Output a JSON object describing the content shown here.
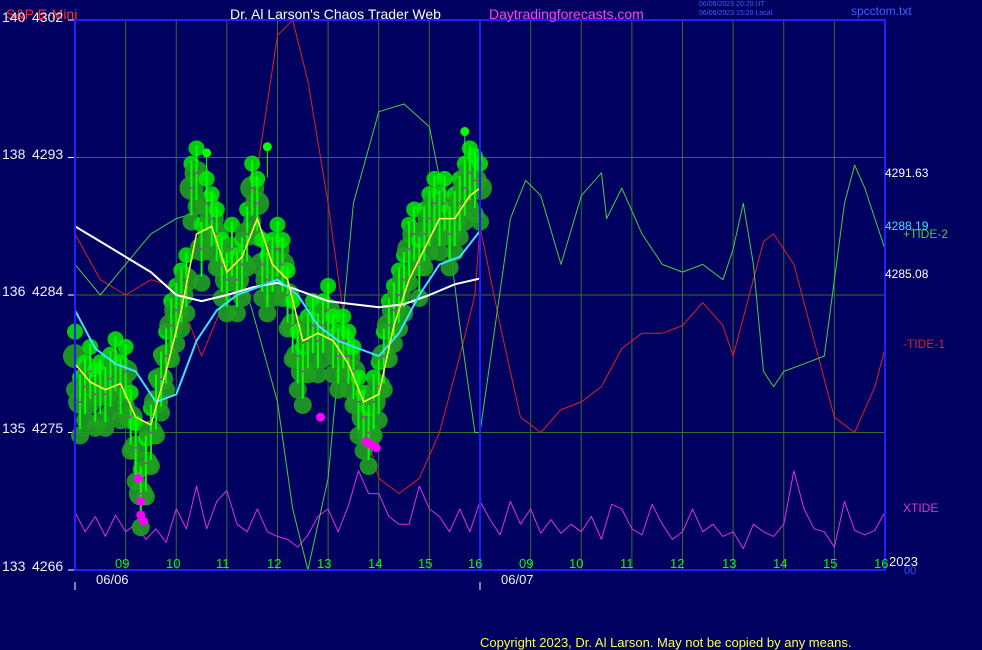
{
  "header": {
    "symbol": "S&P E-Mini",
    "title": "Dr. Al Larson's Chaos Trader Web",
    "site": "Daytradingforecasts.com",
    "timestamp_line1": "06/06/2023 20:20 UT",
    "timestamp_line2": "06/06/2023 15:20 Local",
    "file": "spcctom.txt"
  },
  "footer": {
    "copyright": "Copyright 2023, Dr. Al Larson. May not be copied by any means."
  },
  "colors": {
    "background": "#000060",
    "frame": "#2020ff",
    "grid": "#307030",
    "price_bars": "#00ff00",
    "green_circles": "#20a020",
    "bright_circles": "#00ee00",
    "magenta_marks": "#ff00ff",
    "yellow_avg": "#ffff40",
    "cyan_avg": "#40e0ff",
    "white_avg": "#ffffff",
    "tide2": "#40d040",
    "tide1": "#e02020",
    "xtide": "#e030e0",
    "hdr_symbol": "#ff3030",
    "hdr_title": "#ffffff",
    "hdr_site": "#ff40ff",
    "hdr_time": "#4060ff",
    "hdr_file": "#4060ff"
  },
  "chart_data": {
    "type": "line",
    "title": "S&P E-Mini",
    "y_axis": {
      "range": [
        4266,
        4302
      ],
      "ticks": [
        {
          "left": "140",
          "right": "4302",
          "value": 4302
        },
        {
          "left": "138",
          "right": "4293",
          "value": 4293
        },
        {
          "left": "136",
          "right": "4284",
          "value": 4284
        },
        {
          "left": "135",
          "right": "4275",
          "value": 4275
        },
        {
          "left": "133",
          "right": "4266",
          "value": 4266
        }
      ]
    },
    "x_axis": {
      "range": [
        8.0,
        24.0
      ],
      "hour_ticks": [
        {
          "label": "09",
          "x": 9
        },
        {
          "label": "10",
          "x": 10
        },
        {
          "label": "11",
          "x": 11
        },
        {
          "label": "12",
          "x": 12
        },
        {
          "label": "13",
          "x": 13
        },
        {
          "label": "14",
          "x": 14
        },
        {
          "label": "15",
          "x": 15
        },
        {
          "label": "16",
          "x": 16
        },
        {
          "label": "09",
          "x": 17
        },
        {
          "label": "10",
          "x": 18
        },
        {
          "label": "11",
          "x": 19
        },
        {
          "label": "12",
          "x": 20
        },
        {
          "label": "13",
          "x": 21
        },
        {
          "label": "14",
          "x": 22
        },
        {
          "label": "15",
          "x": 23
        },
        {
          "label": "16",
          "x": 24
        }
      ],
      "date_ticks": [
        {
          "label": "06/06",
          "x": 8.0
        },
        {
          "label": "06/07",
          "x": 16.0
        }
      ],
      "year_label": "2023",
      "overlap_label": "00",
      "session_divider_x": 16.0
    },
    "right_labels": [
      {
        "text": "4291.63",
        "value": 4291.63,
        "color": "#ffffff"
      },
      {
        "text": "4288.19",
        "value": 4288.19,
        "color": "#40e0ff"
      },
      {
        "text": "+TIDE-2",
        "value": 4287.7,
        "color": "#40d040"
      },
      {
        "text": "4285.08",
        "value": 4285.08,
        "color": "#ffffff"
      },
      {
        "text": "-TIDE-1",
        "value": 4280.6,
        "color": "#e02020"
      },
      {
        "text": "XTIDE",
        "value": 4270.1,
        "color": "#e030e0"
      }
    ],
    "series": [
      {
        "key": "price",
        "x": [
          8.0,
          8.1,
          8.2,
          8.3,
          8.4,
          8.5,
          8.6,
          8.7,
          8.8,
          8.9,
          9.0,
          9.1,
          9.2,
          9.3,
          9.4,
          9.5,
          9.6,
          9.7,
          9.8,
          9.9,
          10.0,
          10.1,
          10.2,
          10.3,
          10.4,
          10.5,
          10.6,
          10.7,
          10.8,
          10.9,
          11.0,
          11.1,
          11.2,
          11.3,
          11.4,
          11.5,
          11.6,
          11.7,
          11.8,
          11.9,
          12.0,
          12.1,
          12.2,
          12.3,
          12.4,
          12.5,
          12.6,
          12.7,
          12.8,
          12.9,
          13.0,
          13.1,
          13.2,
          13.3,
          13.4,
          13.5,
          13.6,
          13.7,
          13.8,
          13.9,
          14.0,
          14.1,
          14.2,
          14.3,
          14.4,
          14.5,
          14.6,
          14.7,
          14.8,
          14.9,
          15.0,
          15.1,
          15.2,
          15.3,
          15.4,
          15.5,
          15.6,
          15.7,
          15.8,
          15.9,
          16.0
        ],
        "values": [
          4280.0,
          4277.0,
          4278.0,
          4279.0,
          4277.5,
          4278.0,
          4277.5,
          4278.5,
          4279.5,
          4278.0,
          4279.0,
          4276.0,
          4274.0,
          4271.0,
          4273.0,
          4275.0,
          4277.0,
          4278.5,
          4280.0,
          4282.0,
          4283.0,
          4284.0,
          4285.0,
          4291.0,
          4292.0,
          4287.0,
          4290.0,
          4289.0,
          4288.0,
          4286.0,
          4285.0,
          4287.0,
          4285.0,
          4286.0,
          4288.0,
          4291.0,
          4290.0,
          4286.0,
          4285.0,
          4286.0,
          4287.0,
          4286.0,
          4284.0,
          4282.0,
          4280.0,
          4279.0,
          4281.0,
          4282.0,
          4281.0,
          4282.0,
          4283.0,
          4281.0,
          4280.0,
          4281.0,
          4280.0,
          4279.0,
          4277.0,
          4276.0,
          4275.0,
          4277.0,
          4278.0,
          4280.0,
          4282.0,
          4283.0,
          4284.0,
          4285.0,
          4287.0,
          4288.0,
          4286.0,
          4288.0,
          4289.0,
          4290.0,
          4289.0,
          4290.0,
          4288.0,
          4289.0,
          4290.0,
          4291.0,
          4292.0,
          4291.5,
          4291.0
        ]
      },
      {
        "key": "yellow_avg",
        "x": [
          8.0,
          8.3,
          8.6,
          8.9,
          9.2,
          9.5,
          9.8,
          10.1,
          10.4,
          10.7,
          11.0,
          11.3,
          11.6,
          11.9,
          12.2,
          12.5,
          12.8,
          13.1,
          13.4,
          13.7,
          14.0,
          14.3,
          14.6,
          14.9,
          15.2,
          15.5,
          15.8,
          16.0
        ],
        "values": [
          4279.5,
          4278.3,
          4277.8,
          4278.2,
          4276.0,
          4275.5,
          4279.0,
          4283.0,
          4288.0,
          4288.5,
          4285.5,
          4286.5,
          4289.0,
          4286.0,
          4285.0,
          4281.0,
          4281.5,
          4281.0,
          4279.5,
          4277.0,
          4277.5,
          4282.0,
          4285.0,
          4287.0,
          4289.0,
          4289.0,
          4290.5,
          4291.0
        ]
      },
      {
        "key": "cyan_avg",
        "x": [
          8.0,
          8.4,
          8.8,
          9.2,
          9.6,
          10.0,
          10.4,
          10.8,
          11.2,
          11.6,
          12.0,
          12.4,
          12.8,
          13.2,
          13.6,
          14.0,
          14.4,
          14.8,
          15.2,
          15.6,
          16.0
        ],
        "values": [
          4283.0,
          4280.5,
          4279.5,
          4279.0,
          4277.0,
          4277.5,
          4281.0,
          4283.0,
          4284.0,
          4284.5,
          4285.0,
          4284.0,
          4282.0,
          4281.0,
          4280.5,
          4280.0,
          4281.5,
          4284.0,
          4286.0,
          4286.5,
          4288.19
        ]
      },
      {
        "key": "white_avg",
        "x": [
          8.0,
          8.5,
          9.0,
          9.5,
          10.0,
          10.5,
          11.0,
          11.5,
          12.0,
          12.5,
          13.0,
          13.5,
          14.0,
          14.5,
          15.0,
          15.5,
          16.0
        ],
        "values": [
          4288.5,
          4287.5,
          4286.5,
          4285.5,
          4284.0,
          4283.6,
          4284.0,
          4284.5,
          4284.8,
          4284.2,
          4283.6,
          4283.4,
          4283.2,
          4283.4,
          4284.0,
          4284.7,
          4285.08
        ]
      },
      {
        "key": "tide2",
        "x": [
          8.0,
          8.5,
          9.0,
          9.5,
          10.0,
          10.5,
          11.0,
          11.5,
          12.0,
          12.3,
          12.6,
          13.0,
          13.5,
          14.0,
          14.5,
          15.0,
          15.3,
          15.6,
          15.9,
          16.0,
          16.3,
          16.6,
          16.9,
          17.2,
          17.6,
          18.0,
          18.4,
          18.5,
          18.8,
          19.2,
          19.6,
          20.0,
          20.4,
          20.8,
          21.0,
          21.2,
          21.4,
          21.6,
          21.8,
          22.0,
          22.4,
          22.8,
          23.0,
          23.2,
          23.4,
          23.6,
          24.0
        ],
        "values": [
          4286.0,
          4284.0,
          4286.0,
          4288.0,
          4289.0,
          4289.5,
          4288.0,
          4283.0,
          4277.0,
          4270.0,
          4266.0,
          4272.0,
          4290.0,
          4296.0,
          4296.5,
          4295.0,
          4290.0,
          4282.0,
          4275.0,
          4275.0,
          4282.0,
          4289.0,
          4291.5,
          4290.5,
          4286.0,
          4290.5,
          4292.0,
          4289.0,
          4291.0,
          4288.0,
          4286.0,
          4285.5,
          4286.0,
          4285.0,
          4287.0,
          4290.0,
          4286.0,
          4279.0,
          4278.0,
          4279.0,
          4279.5,
          4280.0,
          4285.0,
          4290.0,
          4292.5,
          4291.0,
          4287.0
        ]
      },
      {
        "key": "tide1",
        "x": [
          8.0,
          8.5,
          9.0,
          9.5,
          10.0,
          10.5,
          11.0,
          11.5,
          12.0,
          12.3,
          12.6,
          13.0,
          13.5,
          14.0,
          14.4,
          14.8,
          15.2,
          15.6,
          15.9,
          16.0,
          16.4,
          16.8,
          17.2,
          17.6,
          18.0,
          18.4,
          18.8,
          19.2,
          19.6,
          20.0,
          20.4,
          20.8,
          21.0,
          21.4,
          21.6,
          21.8,
          22.2,
          22.6,
          23.0,
          23.4,
          23.8,
          24.0
        ],
        "values": [
          4288.0,
          4285.0,
          4284.0,
          4285.0,
          4284.5,
          4280.0,
          4284.0,
          4290.0,
          4301.0,
          4302.0,
          4298.0,
          4290.0,
          4278.0,
          4272.0,
          4271.0,
          4272.0,
          4275.0,
          4280.0,
          4284.0,
          4288.5,
          4282.0,
          4276.0,
          4275.0,
          4276.5,
          4277.0,
          4278.0,
          4280.5,
          4281.5,
          4281.5,
          4282.0,
          4283.5,
          4282.0,
          4280.0,
          4285.0,
          4287.5,
          4288.0,
          4286.0,
          4281.0,
          4276.0,
          4275.0,
          4278.0,
          4280.5
        ]
      },
      {
        "key": "xtide",
        "x": [
          8.0,
          8.2,
          8.4,
          8.6,
          8.8,
          9.0,
          9.2,
          9.4,
          9.6,
          9.8,
          10.0,
          10.2,
          10.4,
          10.6,
          10.8,
          11.0,
          11.2,
          11.4,
          11.6,
          11.8,
          12.0,
          12.2,
          12.4,
          12.6,
          12.8,
          13.0,
          13.2,
          13.4,
          13.6,
          13.8,
          14.0,
          14.2,
          14.4,
          14.6,
          14.8,
          15.0,
          15.2,
          15.4,
          15.6,
          15.8,
          16.0,
          16.2,
          16.4,
          16.6,
          16.8,
          17.0,
          17.2,
          17.4,
          17.6,
          17.8,
          18.0,
          18.2,
          18.4,
          18.6,
          18.8,
          19.0,
          19.2,
          19.4,
          19.6,
          19.8,
          20.0,
          20.2,
          20.4,
          20.6,
          20.8,
          21.0,
          21.2,
          21.4,
          21.6,
          21.8,
          22.0,
          22.2,
          22.4,
          22.6,
          22.8,
          23.0,
          23.2,
          23.4,
          23.6,
          23.8,
          24.0
        ],
        "values": [
          4269.8,
          4268.5,
          4269.5,
          4268.2,
          4269.6,
          4268.5,
          4269.0,
          4268.0,
          4268.7,
          4267.8,
          4270.0,
          4268.7,
          4271.5,
          4268.7,
          4270.5,
          4271.2,
          4269.0,
          4268.5,
          4270.0,
          4268.5,
          4268.2,
          4268.0,
          4267.5,
          4268.3,
          4269.5,
          4270.0,
          4268.5,
          4270.2,
          4272.5,
          4271.0,
          4271.0,
          4269.5,
          4269.0,
          4269.0,
          4271.5,
          4270.0,
          4269.5,
          4268.5,
          4270.0,
          4268.5,
          4270.5,
          4269.3,
          4268.3,
          4270.5,
          4269.0,
          4270.0,
          4268.4,
          4269.3,
          4268.4,
          4269.0,
          4268.5,
          4269.5,
          4268.0,
          4270.3,
          4270.0,
          4268.7,
          4268.3,
          4270.3,
          4269.0,
          4268.0,
          4268.5,
          4270.0,
          4268.5,
          4269.0,
          4268.2,
          4268.5,
          4267.4,
          4269.0,
          4268.5,
          4268.2,
          4269.0,
          4272.5,
          4270.0,
          4268.7,
          4268.5,
          4267.5,
          4270.5,
          4268.6,
          4268.3,
          4268.6,
          4269.8
        ]
      }
    ],
    "highlights": {
      "big_circles_x": [
        8.0,
        8.1,
        8.2,
        8.3,
        8.4,
        8.5,
        8.6,
        8.7,
        8.8,
        8.9,
        9.0,
        9.1,
        9.2,
        9.3,
        9.4,
        9.5,
        9.6,
        9.7,
        9.8,
        9.9,
        10.0,
        10.1,
        10.2,
        10.3,
        10.4,
        10.5,
        10.6,
        10.7,
        10.8,
        10.9,
        11.0,
        11.1,
        11.2,
        11.3,
        11.4,
        11.5,
        11.6,
        11.7,
        11.8,
        11.9,
        12.0,
        12.1,
        12.2,
        12.3,
        12.4,
        12.5,
        12.6,
        12.7,
        12.8,
        12.9,
        13.0,
        13.1,
        13.2,
        13.3,
        13.4,
        13.5,
        13.6,
        13.7,
        13.8,
        13.9,
        14.0,
        14.1,
        14.2,
        14.3,
        14.4,
        14.5,
        14.6,
        14.7,
        14.8,
        14.9,
        15.0,
        15.1,
        15.2,
        15.3,
        15.4,
        15.5,
        15.6,
        15.7,
        15.8,
        15.9,
        16.0
      ],
      "green_dots": [
        {
          "x": 10.6,
          "value": 4293.3
        },
        {
          "x": 11.8,
          "value": 4293.7
        },
        {
          "x": 15.7,
          "value": 4294.7
        }
      ],
      "magenta_dots": [
        {
          "x": 9.25,
          "value": 4272.0
        },
        {
          "x": 9.3,
          "value": 4270.5
        },
        {
          "x": 9.3,
          "value": 4269.6
        },
        {
          "x": 9.35,
          "value": 4269.2
        },
        {
          "x": 12.85,
          "value": 4276.0
        },
        {
          "x": 13.75,
          "value": 4274.4
        },
        {
          "x": 13.85,
          "value": 4274.2
        },
        {
          "x": 13.95,
          "value": 4274.0
        }
      ]
    }
  }
}
